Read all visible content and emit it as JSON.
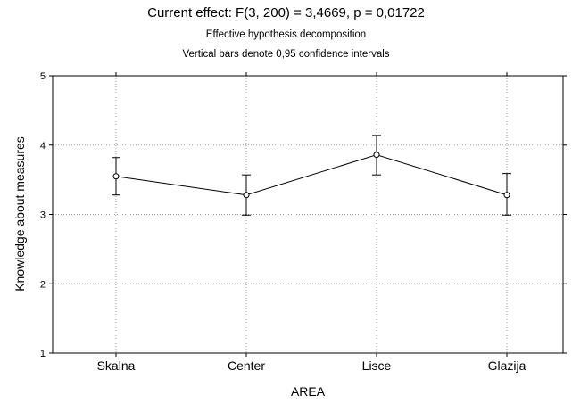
{
  "titles": {
    "main": "Current effect: F(3, 200) = 3,4669, p = 0,01722",
    "sub1": "Effective hypothesis decomposition",
    "sub2": "Vertical bars denote 0,95 confidence intervals"
  },
  "chart_data": {
    "type": "line",
    "title": "Current effect: F(3, 200) = 3,4669, p = 0,01722",
    "xlabel": "AREA",
    "ylabel": "Knowledge about measures",
    "categories": [
      "Skalna",
      "Center",
      "Lisce",
      "Glazija"
    ],
    "ylim": [
      1,
      5
    ],
    "yticks": [
      1,
      2,
      3,
      4,
      5
    ],
    "grid": true,
    "series": [
      {
        "values": [
          3.55,
          3.28,
          3.86,
          3.28
        ],
        "ci_lower": [
          3.28,
          2.99,
          3.57,
          2.99
        ],
        "ci_upper": [
          3.82,
          3.57,
          4.14,
          3.59
        ]
      }
    ],
    "colors": {
      "line": "#000000",
      "grid": "#9a9a9a",
      "marker_fill": "#ffffff"
    }
  }
}
